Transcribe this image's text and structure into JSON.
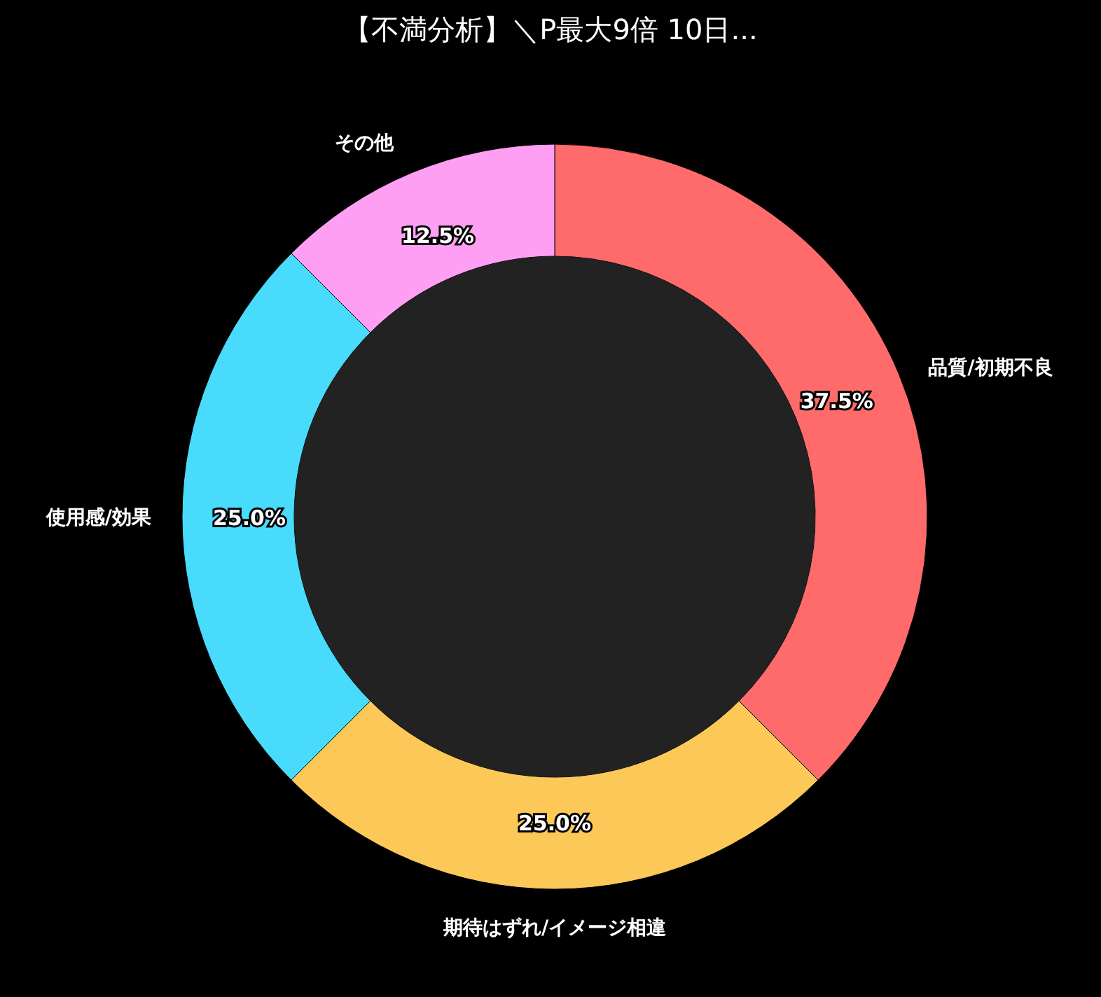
{
  "chart_data": {
    "type": "donut",
    "title": "【不満分析】＼P最大9倍 10日...",
    "categories": [
      "品質/初期不良",
      "期待はずれ/イメージ相違",
      "使用感/効果",
      "その他"
    ],
    "values": [
      37.5,
      25.0,
      25.0,
      12.5
    ],
    "colors": [
      "#ff6b6b",
      "#fcc858",
      "#48dbfb",
      "#ff9ff3"
    ],
    "value_labels": [
      "37.5%",
      "25.0%",
      "25.0%",
      "12.5%"
    ]
  }
}
